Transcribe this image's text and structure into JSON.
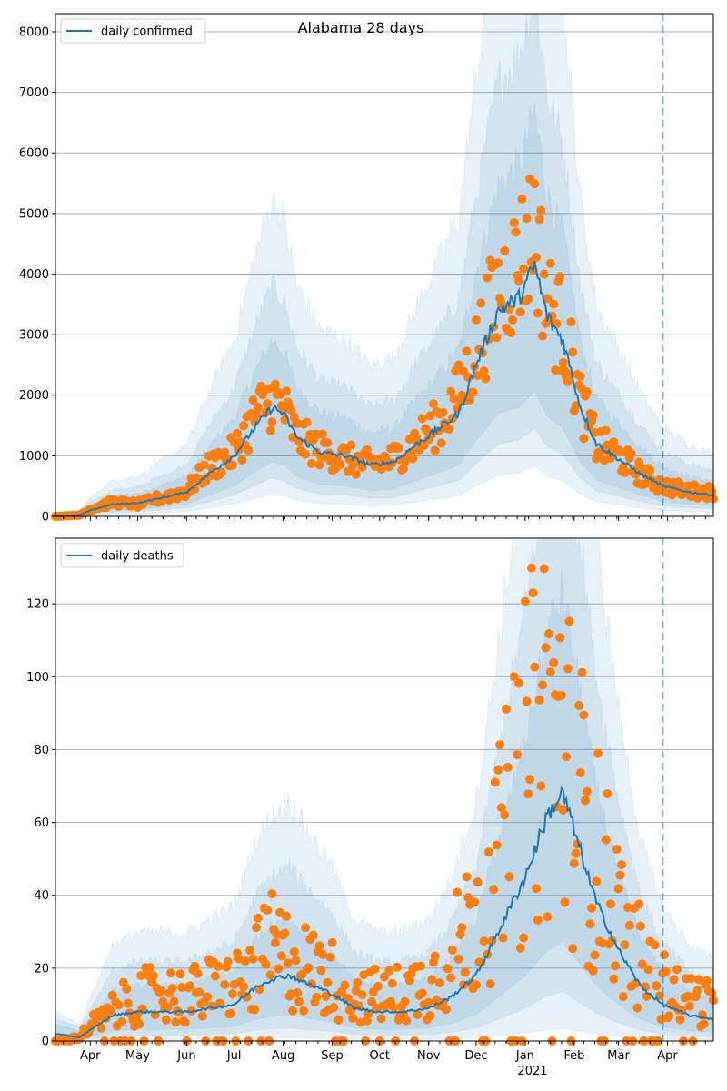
{
  "figure": {
    "title": "Alabama 28 days"
  },
  "colors": {
    "line": "#1f77b4",
    "points": "#ff7f0e",
    "band": "#1f77b4",
    "grid": "#b0b0b0"
  },
  "x_axis": {
    "month_ticks": [
      "Apr",
      "May",
      "Jun",
      "Jul",
      "Aug",
      "Sep",
      "Oct",
      "Nov",
      "Dec",
      "Jan",
      "Feb",
      "Mar",
      "Apr"
    ],
    "month_dates": [
      "2020-04-01",
      "2020-05-01",
      "2020-06-01",
      "2020-07-01",
      "2020-08-01",
      "2020-09-01",
      "2020-10-01",
      "2020-11-01",
      "2020-12-01",
      "2021-01-01",
      "2021-02-01",
      "2021-03-01",
      "2021-04-01"
    ],
    "year_label": "2021",
    "start": "2020-03-10",
    "end": "2021-04-30",
    "forecast_start": "2021-03-29"
  },
  "chart_data": [
    {
      "type": "line",
      "legend": "daily confirmed",
      "legend_placement": "top-left",
      "grid": "y",
      "ylim": [
        0,
        8300
      ],
      "yticks": [
        0,
        1000,
        2000,
        3000,
        4000,
        5000,
        6000,
        7000,
        8000
      ],
      "model_knots": [
        [
          "2020-03-10",
          0
        ],
        [
          "2020-03-25",
          20
        ],
        [
          "2020-04-01",
          100
        ],
        [
          "2020-04-15",
          200
        ],
        [
          "2020-05-01",
          220
        ],
        [
          "2020-05-15",
          300
        ],
        [
          "2020-06-01",
          400
        ],
        [
          "2020-06-15",
          700
        ],
        [
          "2020-07-01",
          1000
        ],
        [
          "2020-07-15",
          1500
        ],
        [
          "2020-07-25",
          1800
        ],
        [
          "2020-08-01",
          1700
        ],
        [
          "2020-08-10",
          1300
        ],
        [
          "2020-08-25",
          1050
        ],
        [
          "2020-09-10",
          1000
        ],
        [
          "2020-09-25",
          850
        ],
        [
          "2020-10-10",
          900
        ],
        [
          "2020-10-25",
          1200
        ],
        [
          "2020-11-10",
          1500
        ],
        [
          "2020-11-20",
          1700
        ],
        [
          "2020-12-01",
          2500
        ],
        [
          "2020-12-15",
          3400
        ],
        [
          "2020-12-28",
          3600
        ],
        [
          "2021-01-07",
          4150
        ],
        [
          "2021-01-15",
          3300
        ],
        [
          "2021-01-25",
          2900
        ],
        [
          "2021-02-05",
          1800
        ],
        [
          "2021-02-15",
          1200
        ],
        [
          "2021-03-01",
          950
        ],
        [
          "2021-03-15",
          700
        ],
        [
          "2021-03-29",
          500
        ],
        [
          "2021-04-15",
          400
        ],
        [
          "2021-04-30",
          350
        ]
      ],
      "observed_knots": [
        [
          "2020-03-10",
          0
        ],
        [
          "2020-03-25",
          20
        ],
        [
          "2020-04-01",
          120
        ],
        [
          "2020-04-15",
          230
        ],
        [
          "2020-05-01",
          200
        ],
        [
          "2020-05-15",
          300
        ],
        [
          "2020-06-01",
          420
        ],
        [
          "2020-06-15",
          800
        ],
        [
          "2020-07-01",
          1050
        ],
        [
          "2020-07-15",
          1700
        ],
        [
          "2020-07-25",
          1950
        ],
        [
          "2020-08-01",
          1800
        ],
        [
          "2020-08-10",
          1300
        ],
        [
          "2020-08-25",
          1100
        ],
        [
          "2020-09-10",
          950
        ],
        [
          "2020-09-25",
          850
        ],
        [
          "2020-10-10",
          950
        ],
        [
          "2020-10-25",
          1250
        ],
        [
          "2020-11-10",
          1600
        ],
        [
          "2020-11-20",
          2000
        ],
        [
          "2020-12-01",
          2700
        ],
        [
          "2020-12-15",
          3700
        ],
        [
          "2020-12-28",
          4200
        ],
        [
          "2021-01-07",
          4800
        ],
        [
          "2021-01-15",
          3500
        ],
        [
          "2021-01-25",
          3100
        ],
        [
          "2021-02-05",
          1900
        ],
        [
          "2021-02-15",
          1200
        ],
        [
          "2021-03-01",
          1000
        ],
        [
          "2021-03-15",
          700
        ],
        [
          "2021-03-29",
          500
        ],
        [
          "2021-04-15",
          420
        ],
        [
          "2021-04-30",
          400
        ]
      ]
    },
    {
      "type": "line",
      "legend": "daily deaths",
      "legend_placement": "top-left",
      "grid": "y",
      "ylim": [
        0,
        138
      ],
      "yticks": [
        0,
        20,
        40,
        60,
        80,
        100,
        120
      ],
      "model_knots": [
        [
          "2020-03-10",
          2
        ],
        [
          "2020-03-25",
          1
        ],
        [
          "2020-04-01",
          3
        ],
        [
          "2020-04-15",
          7
        ],
        [
          "2020-05-01",
          8
        ],
        [
          "2020-05-15",
          8
        ],
        [
          "2020-06-01",
          8
        ],
        [
          "2020-06-15",
          9
        ],
        [
          "2020-07-01",
          10
        ],
        [
          "2020-07-15",
          15
        ],
        [
          "2020-07-25",
          17
        ],
        [
          "2020-08-05",
          18
        ],
        [
          "2020-08-15",
          16
        ],
        [
          "2020-09-01",
          13
        ],
        [
          "2020-09-15",
          9
        ],
        [
          "2020-10-01",
          8
        ],
        [
          "2020-10-15",
          8
        ],
        [
          "2020-11-01",
          9
        ],
        [
          "2020-11-15",
          12
        ],
        [
          "2020-12-01",
          18
        ],
        [
          "2020-12-15",
          30
        ],
        [
          "2021-01-01",
          45
        ],
        [
          "2021-01-15",
          62
        ],
        [
          "2021-01-25",
          68
        ],
        [
          "2021-02-05",
          52
        ],
        [
          "2021-02-15",
          38
        ],
        [
          "2021-03-01",
          25
        ],
        [
          "2021-03-15",
          15
        ],
        [
          "2021-03-29",
          10
        ],
        [
          "2021-04-15",
          7
        ],
        [
          "2021-04-30",
          6
        ]
      ],
      "observed_knots": [
        [
          "2020-03-10",
          0
        ],
        [
          "2020-03-25",
          1
        ],
        [
          "2020-04-01",
          4
        ],
        [
          "2020-04-15",
          8
        ],
        [
          "2020-05-01",
          12
        ],
        [
          "2020-05-15",
          13
        ],
        [
          "2020-06-01",
          12
        ],
        [
          "2020-06-15",
          14
        ],
        [
          "2020-07-01",
          15
        ],
        [
          "2020-07-15",
          20
        ],
        [
          "2020-07-25",
          25
        ],
        [
          "2020-08-05",
          22
        ],
        [
          "2020-08-15",
          20
        ],
        [
          "2020-09-01",
          17
        ],
        [
          "2020-09-15",
          13
        ],
        [
          "2020-10-01",
          12
        ],
        [
          "2020-10-15",
          13
        ],
        [
          "2020-11-01",
          16
        ],
        [
          "2020-11-15",
          22
        ],
        [
          "2020-12-01",
          35
        ],
        [
          "2020-12-15",
          48
        ],
        [
          "2021-01-01",
          75
        ],
        [
          "2021-01-15",
          90
        ],
        [
          "2021-01-25",
          80
        ],
        [
          "2021-02-05",
          65
        ],
        [
          "2021-02-15",
          50
        ],
        [
          "2021-03-01",
          35
        ],
        [
          "2021-03-15",
          22
        ],
        [
          "2021-03-29",
          15
        ],
        [
          "2021-04-15",
          12
        ],
        [
          "2021-04-30",
          10
        ]
      ]
    }
  ]
}
